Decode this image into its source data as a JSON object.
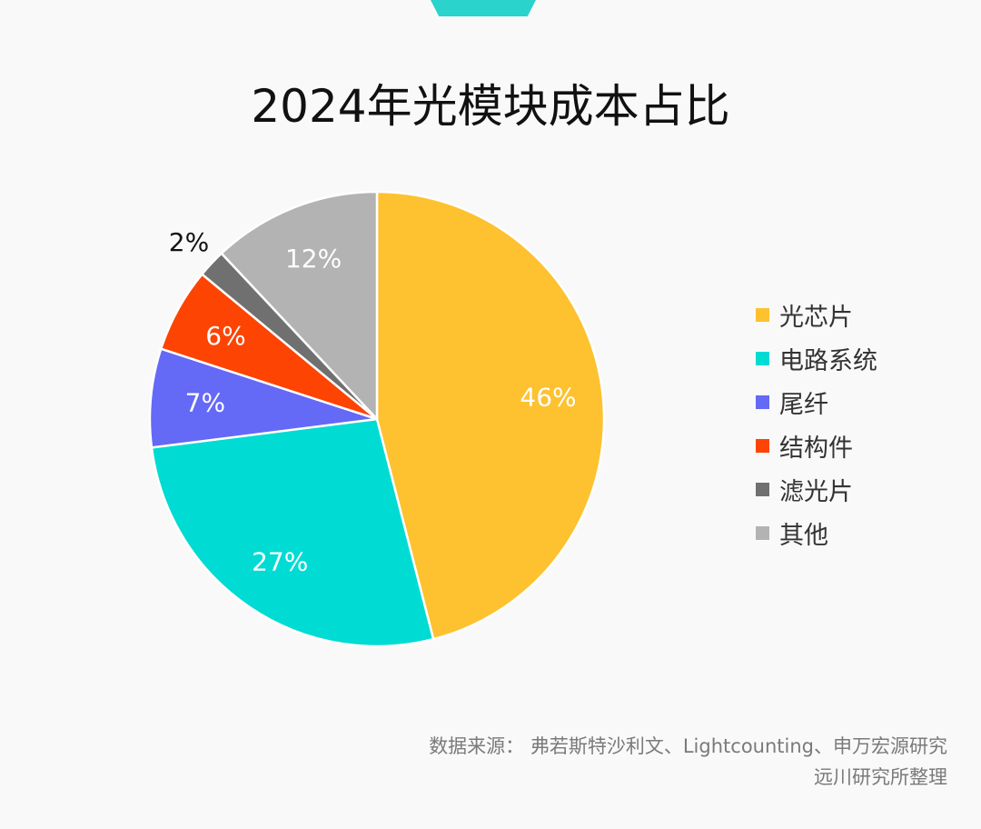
{
  "chart_data": {
    "type": "pie",
    "title": "2024年光模块成本占比",
    "slices": [
      {
        "name": "光芯片",
        "value": 46,
        "label": "46%",
        "color": "#fec12f"
      },
      {
        "name": "电路系统",
        "value": 27,
        "label": "27%",
        "color": "#00dbd3"
      },
      {
        "name": "尾纤",
        "value": 7,
        "label": "7%",
        "color": "#6469f6"
      },
      {
        "name": "结构件",
        "value": 6,
        "label": "6%",
        "color": "#fd4402"
      },
      {
        "name": "滤光片",
        "value": 2,
        "label": "2%",
        "color": "#707070"
      },
      {
        "name": "其他",
        "value": 12,
        "label": "12%",
        "color": "#b3b3b3"
      }
    ],
    "legend_position": "right"
  },
  "source": {
    "line1": "数据来源：  弗若斯特沙利文、Lightcounting、申万宏源研究",
    "line2": "远川研究所整理"
  },
  "colors": {
    "accent": "#2ad3cc",
    "background": "#f9f9f9"
  }
}
